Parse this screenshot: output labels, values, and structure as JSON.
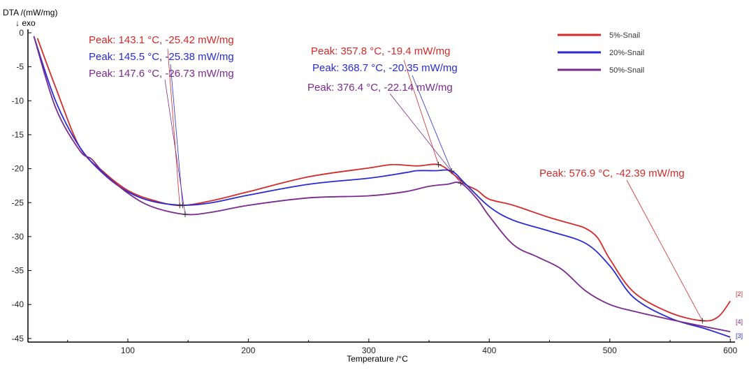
{
  "chart_data": {
    "type": "line",
    "ylabel": "DTA /(mW/mg)",
    "ylabel_note": "↓ exo",
    "xlabel": "Temperature /°C",
    "xlim": [
      17,
      605
    ],
    "ylim": [
      -46,
      0
    ],
    "xticks": [
      100,
      200,
      300,
      400,
      500,
      600
    ],
    "yticks": [
      0,
      -5,
      -10,
      -15,
      -20,
      -25,
      -30,
      -35,
      -40,
      -45
    ],
    "grid": false,
    "legend_position": "top-right",
    "series": [
      {
        "name": "5%-Snail",
        "color": "#d42a2a",
        "marker": "[2]",
        "x": [
          25,
          40,
          60,
          80,
          100,
          120,
          143.1,
          170,
          200,
          250,
          300,
          320,
          340,
          357.8,
          370,
          380,
          390,
          400,
          420,
          450,
          470,
          480,
          490,
          500,
          520,
          550,
          577,
          590,
          600
        ],
        "y": [
          -0.8,
          -8,
          -16.8,
          -20.5,
          -23.2,
          -24.6,
          -25.42,
          -24.7,
          -23.4,
          -21.2,
          -19.9,
          -19.4,
          -19.6,
          -19.4,
          -20.8,
          -22.3,
          -23.2,
          -24.5,
          -25.4,
          -27.2,
          -28.2,
          -28.8,
          -30.2,
          -33.3,
          -38.2,
          -41.2,
          -42.39,
          -41.8,
          -39.5
        ]
      },
      {
        "name": "20%-Snail",
        "color": "#2a2ad4",
        "marker": "[3]",
        "x": [
          22,
          40,
          60,
          80,
          100,
          120,
          145.5,
          170,
          200,
          250,
          300,
          330,
          340,
          355,
          368.7,
          380,
          400,
          420,
          450,
          480,
          500,
          520,
          550,
          580,
          600
        ],
        "y": [
          -0.5,
          -10,
          -16.8,
          -20.8,
          -23.4,
          -24.8,
          -25.38,
          -25,
          -23.9,
          -22.3,
          -21.4,
          -20.6,
          -20.3,
          -20.3,
          -20.35,
          -22.2,
          -25.6,
          -27.6,
          -29.2,
          -31,
          -34.3,
          -39,
          -42,
          -43.6,
          -44.8
        ]
      },
      {
        "name": "50%-Snail",
        "color": "#7a2a8c",
        "marker": "[4]",
        "x": [
          22,
          40,
          60,
          70,
          80,
          100,
          120,
          147.6,
          170,
          200,
          250,
          300,
          330,
          350,
          365,
          376.4,
          390,
          400,
          420,
          440,
          460,
          480,
          500,
          520,
          550,
          580,
          600
        ],
        "y": [
          -0.5,
          -11,
          -17.3,
          -18.6,
          -20.6,
          -23.6,
          -25.6,
          -26.73,
          -26.4,
          -25.4,
          -24.3,
          -24,
          -23.4,
          -22.6,
          -22.3,
          -22.14,
          -24.5,
          -27,
          -31.2,
          -33,
          -34.8,
          -38,
          -40,
          -41,
          -42.2,
          -43.3,
          -44
        ]
      }
    ],
    "annotations": [
      {
        "text": "Peak: 143.1 °C, -25.42 mW/mg",
        "series": "5%-Snail",
        "x": 143.1,
        "y": -25.42
      },
      {
        "text": "Peak: 145.5 °C, -25.38 mW/mg",
        "series": "20%-Snail",
        "x": 145.5,
        "y": -25.38
      },
      {
        "text": "Peak: 147.6 °C, -26.73 mW/mg",
        "series": "50%-Snail",
        "x": 147.6,
        "y": -26.73
      },
      {
        "text": "Peak: 357.8 °C, -19.4 mW/mg",
        "series": "5%-Snail",
        "x": 357.8,
        "y": -19.4
      },
      {
        "text": "Peak: 368.7 °C, -20.35 mW/mg",
        "series": "20%-Snail",
        "x": 368.7,
        "y": -20.35
      },
      {
        "text": "Peak: 376.4 °C, -22.14 mW/mg",
        "series": "50%-Snail",
        "x": 376.4,
        "y": -22.14
      },
      {
        "text": "Peak: 576.9 °C, -42.39 mW/mg",
        "series": "5%-Snail",
        "x": 576.9,
        "y": -42.39
      }
    ]
  }
}
